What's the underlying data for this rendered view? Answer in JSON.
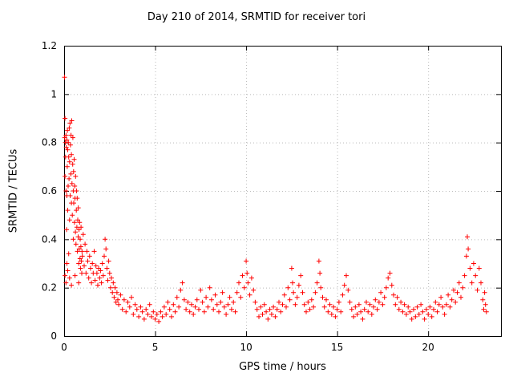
{
  "chart_data": {
    "type": "scatter",
    "title": "Day 210 of 2014, SRMTID for receiver tori",
    "xlabel": "GPS time / hours",
    "ylabel": "SRMTID / TECUs",
    "xlim": [
      0,
      24
    ],
    "ylim": [
      0,
      1.2
    ],
    "xticks": [
      0,
      5,
      10,
      15,
      20
    ],
    "xtick_labels": [
      "0",
      "5",
      "10",
      "15",
      "20"
    ],
    "yticks": [
      0,
      0.2,
      0.4,
      0.6,
      0.8,
      1,
      1.2
    ],
    "ytick_labels": [
      "0",
      "0.2",
      "0.4",
      "0.6",
      "0.8",
      "1",
      "1.2"
    ],
    "grid": true,
    "grid_color": "#b8b8b8",
    "legend": "none",
    "marker": "plus",
    "marker_color": "#ff0000",
    "points": [
      [
        0.02,
        1.07
      ],
      [
        0.03,
        0.82
      ],
      [
        0.05,
        0.9
      ],
      [
        0.05,
        0.66
      ],
      [
        0.07,
        0.8
      ],
      [
        0.08,
        0.74
      ],
      [
        0.1,
        0.83
      ],
      [
        0.1,
        0.6
      ],
      [
        0.12,
        0.78
      ],
      [
        0.13,
        0.44
      ],
      [
        0.15,
        0.81
      ],
      [
        0.15,
        0.58
      ],
      [
        0.17,
        0.7
      ],
      [
        0.18,
        0.85
      ],
      [
        0.2,
        0.77
      ],
      [
        0.2,
        0.52
      ],
      [
        0.22,
        0.62
      ],
      [
        0.23,
        0.8
      ],
      [
        0.25,
        0.74
      ],
      [
        0.25,
        0.34
      ],
      [
        0.27,
        0.65
      ],
      [
        0.28,
        0.86
      ],
      [
        0.3,
        0.72
      ],
      [
        0.3,
        0.48
      ],
      [
        0.32,
        0.88
      ],
      [
        0.33,
        0.58
      ],
      [
        0.35,
        0.79
      ],
      [
        0.37,
        0.67
      ],
      [
        0.38,
        0.83
      ],
      [
        0.4,
        0.55
      ],
      [
        0.4,
        0.75
      ],
      [
        0.42,
        0.89
      ],
      [
        0.43,
        0.63
      ],
      [
        0.45,
        0.5
      ],
      [
        0.47,
        0.71
      ],
      [
        0.48,
        0.82
      ],
      [
        0.5,
        0.6
      ],
      [
        0.5,
        0.4
      ],
      [
        0.52,
        0.68
      ],
      [
        0.53,
        0.55
      ],
      [
        0.55,
        0.73
      ],
      [
        0.57,
        0.47
      ],
      [
        0.58,
        0.62
      ],
      [
        0.6,
        0.57
      ],
      [
        0.62,
        0.43
      ],
      [
        0.63,
        0.66
      ],
      [
        0.65,
        0.38
      ],
      [
        0.67,
        0.52
      ],
      [
        0.68,
        0.6
      ],
      [
        0.7,
        0.45
      ],
      [
        0.72,
        0.57
      ],
      [
        0.73,
        0.35
      ],
      [
        0.75,
        0.48
      ],
      [
        0.77,
        0.41
      ],
      [
        0.78,
        0.53
      ],
      [
        0.8,
        0.3
      ],
      [
        0.82,
        0.44
      ],
      [
        0.83,
        0.36
      ],
      [
        0.85,
        0.47
      ],
      [
        0.87,
        0.32
      ],
      [
        0.88,
        0.4
      ],
      [
        0.9,
        0.28
      ],
      [
        0.92,
        0.37
      ],
      [
        0.93,
        0.45
      ],
      [
        0.95,
        0.31
      ],
      [
        0.97,
        0.26
      ],
      [
        0.98,
        0.35
      ],
      [
        0.05,
        0.25
      ],
      [
        0.1,
        0.22
      ],
      [
        0.15,
        0.3
      ],
      [
        0.2,
        0.27
      ],
      [
        0.3,
        0.24
      ],
      [
        0.4,
        0.21
      ],
      [
        0.6,
        0.25
      ],
      [
        0.8,
        0.22
      ],
      [
        1.0,
        0.33
      ],
      [
        1.05,
        0.42
      ],
      [
        1.1,
        0.29
      ],
      [
        1.15,
        0.38
      ],
      [
        1.2,
        0.26
      ],
      [
        1.25,
        0.35
      ],
      [
        1.3,
        0.31
      ],
      [
        1.35,
        0.24
      ],
      [
        1.4,
        0.33
      ],
      [
        1.45,
        0.28
      ],
      [
        1.5,
        0.22
      ],
      [
        1.55,
        0.3
      ],
      [
        1.6,
        0.26
      ],
      [
        1.65,
        0.35
      ],
      [
        1.7,
        0.23
      ],
      [
        1.75,
        0.29
      ],
      [
        1.8,
        0.26
      ],
      [
        1.85,
        0.21
      ],
      [
        1.9,
        0.28
      ],
      [
        1.95,
        0.24
      ],
      [
        2.0,
        0.27
      ],
      [
        2.05,
        0.22
      ],
      [
        2.1,
        0.3
      ],
      [
        2.15,
        0.25
      ],
      [
        2.2,
        0.33
      ],
      [
        2.25,
        0.4
      ],
      [
        2.3,
        0.36
      ],
      [
        2.35,
        0.28
      ],
      [
        2.4,
        0.23
      ],
      [
        2.45,
        0.31
      ],
      [
        2.5,
        0.26
      ],
      [
        2.55,
        0.2
      ],
      [
        2.6,
        0.24
      ],
      [
        2.65,
        0.18
      ],
      [
        2.7,
        0.22
      ],
      [
        2.75,
        0.16
      ],
      [
        2.8,
        0.2
      ],
      [
        2.85,
        0.14
      ],
      [
        2.9,
        0.18
      ],
      [
        2.95,
        0.15
      ],
      [
        3.0,
        0.13
      ],
      [
        3.1,
        0.17
      ],
      [
        3.2,
        0.11
      ],
      [
        3.3,
        0.15
      ],
      [
        3.4,
        0.1
      ],
      [
        3.5,
        0.14
      ],
      [
        3.6,
        0.12
      ],
      [
        3.7,
        0.16
      ],
      [
        3.8,
        0.09
      ],
      [
        3.9,
        0.13
      ],
      [
        4.0,
        0.11
      ],
      [
        4.1,
        0.08
      ],
      [
        4.2,
        0.12
      ],
      [
        4.3,
        0.1
      ],
      [
        4.4,
        0.07
      ],
      [
        4.5,
        0.11
      ],
      [
        4.6,
        0.09
      ],
      [
        4.7,
        0.13
      ],
      [
        4.8,
        0.08
      ],
      [
        4.9,
        0.1
      ],
      [
        5.0,
        0.07
      ],
      [
        5.1,
        0.09
      ],
      [
        5.2,
        0.06
      ],
      [
        5.3,
        0.1
      ],
      [
        5.4,
        0.08
      ],
      [
        5.5,
        0.12
      ],
      [
        5.6,
        0.09
      ],
      [
        5.7,
        0.14
      ],
      [
        5.8,
        0.11
      ],
      [
        5.9,
        0.08
      ],
      [
        6.0,
        0.13
      ],
      [
        6.1,
        0.1
      ],
      [
        6.2,
        0.16
      ],
      [
        6.3,
        0.12
      ],
      [
        6.4,
        0.19
      ],
      [
        6.5,
        0.22
      ],
      [
        6.6,
        0.15
      ],
      [
        6.7,
        0.11
      ],
      [
        6.8,
        0.14
      ],
      [
        6.9,
        0.1
      ],
      [
        7.0,
        0.13
      ],
      [
        7.1,
        0.09
      ],
      [
        7.2,
        0.12
      ],
      [
        7.3,
        0.15
      ],
      [
        7.4,
        0.11
      ],
      [
        7.5,
        0.19
      ],
      [
        7.6,
        0.14
      ],
      [
        7.7,
        0.1
      ],
      [
        7.8,
        0.16
      ],
      [
        7.9,
        0.12
      ],
      [
        8.0,
        0.2
      ],
      [
        8.1,
        0.15
      ],
      [
        8.2,
        0.11
      ],
      [
        8.3,
        0.17
      ],
      [
        8.4,
        0.13
      ],
      [
        8.5,
        0.1
      ],
      [
        8.6,
        0.14
      ],
      [
        8.7,
        0.18
      ],
      [
        8.8,
        0.12
      ],
      [
        8.9,
        0.09
      ],
      [
        9.0,
        0.13
      ],
      [
        9.1,
        0.16
      ],
      [
        9.2,
        0.11
      ],
      [
        9.3,
        0.14
      ],
      [
        9.4,
        0.1
      ],
      [
        9.5,
        0.18
      ],
      [
        9.6,
        0.22
      ],
      [
        9.7,
        0.16
      ],
      [
        9.8,
        0.25
      ],
      [
        9.9,
        0.2
      ],
      [
        10.0,
        0.31
      ],
      [
        10.05,
        0.26
      ],
      [
        10.1,
        0.22
      ],
      [
        10.2,
        0.17
      ],
      [
        10.3,
        0.24
      ],
      [
        10.4,
        0.19
      ],
      [
        10.5,
        0.14
      ],
      [
        10.6,
        0.11
      ],
      [
        10.7,
        0.08
      ],
      [
        10.8,
        0.12
      ],
      [
        10.9,
        0.09
      ],
      [
        11.0,
        0.13
      ],
      [
        11.1,
        0.1
      ],
      [
        11.2,
        0.07
      ],
      [
        11.3,
        0.11
      ],
      [
        11.4,
        0.09
      ],
      [
        11.5,
        0.12
      ],
      [
        11.6,
        0.08
      ],
      [
        11.7,
        0.11
      ],
      [
        11.8,
        0.14
      ],
      [
        11.9,
        0.1
      ],
      [
        12.0,
        0.13
      ],
      [
        12.1,
        0.17
      ],
      [
        12.2,
        0.12
      ],
      [
        12.3,
        0.2
      ],
      [
        12.4,
        0.15
      ],
      [
        12.5,
        0.28
      ],
      [
        12.55,
        0.22
      ],
      [
        12.6,
        0.18
      ],
      [
        12.7,
        0.13
      ],
      [
        12.8,
        0.16
      ],
      [
        12.9,
        0.21
      ],
      [
        13.0,
        0.25
      ],
      [
        13.1,
        0.18
      ],
      [
        13.2,
        0.13
      ],
      [
        13.3,
        0.1
      ],
      [
        13.4,
        0.14
      ],
      [
        13.5,
        0.11
      ],
      [
        13.6,
        0.15
      ],
      [
        13.7,
        0.12
      ],
      [
        13.8,
        0.18
      ],
      [
        13.9,
        0.22
      ],
      [
        14.0,
        0.31
      ],
      [
        14.05,
        0.26
      ],
      [
        14.1,
        0.2
      ],
      [
        14.2,
        0.16
      ],
      [
        14.3,
        0.12
      ],
      [
        14.4,
        0.15
      ],
      [
        14.5,
        0.1
      ],
      [
        14.6,
        0.13
      ],
      [
        14.7,
        0.09
      ],
      [
        14.8,
        0.12
      ],
      [
        14.9,
        0.08
      ],
      [
        15.0,
        0.11
      ],
      [
        15.1,
        0.14
      ],
      [
        15.2,
        0.1
      ],
      [
        15.3,
        0.17
      ],
      [
        15.4,
        0.21
      ],
      [
        15.5,
        0.25
      ],
      [
        15.6,
        0.19
      ],
      [
        15.7,
        0.14
      ],
      [
        15.8,
        0.11
      ],
      [
        15.9,
        0.08
      ],
      [
        16.0,
        0.12
      ],
      [
        16.1,
        0.09
      ],
      [
        16.2,
        0.13
      ],
      [
        16.3,
        0.1
      ],
      [
        16.4,
        0.07
      ],
      [
        16.5,
        0.11
      ],
      [
        16.6,
        0.14
      ],
      [
        16.7,
        0.1
      ],
      [
        16.8,
        0.13
      ],
      [
        16.9,
        0.09
      ],
      [
        17.0,
        0.12
      ],
      [
        17.1,
        0.15
      ],
      [
        17.2,
        0.11
      ],
      [
        17.3,
        0.14
      ],
      [
        17.4,
        0.18
      ],
      [
        17.5,
        0.13
      ],
      [
        17.6,
        0.16
      ],
      [
        17.7,
        0.2
      ],
      [
        17.8,
        0.24
      ],
      [
        17.9,
        0.26
      ],
      [
        18.0,
        0.21
      ],
      [
        18.1,
        0.17
      ],
      [
        18.2,
        0.13
      ],
      [
        18.3,
        0.16
      ],
      [
        18.4,
        0.11
      ],
      [
        18.5,
        0.14
      ],
      [
        18.6,
        0.1
      ],
      [
        18.7,
        0.13
      ],
      [
        18.8,
        0.09
      ],
      [
        18.9,
        0.12
      ],
      [
        19.0,
        0.1
      ],
      [
        19.1,
        0.07
      ],
      [
        19.2,
        0.11
      ],
      [
        19.3,
        0.08
      ],
      [
        19.4,
        0.12
      ],
      [
        19.5,
        0.09
      ],
      [
        19.6,
        0.13
      ],
      [
        19.7,
        0.1
      ],
      [
        19.8,
        0.07
      ],
      [
        19.9,
        0.11
      ],
      [
        20.0,
        0.09
      ],
      [
        20.1,
        0.12
      ],
      [
        20.2,
        0.08
      ],
      [
        20.3,
        0.11
      ],
      [
        20.4,
        0.14
      ],
      [
        20.5,
        0.1
      ],
      [
        20.6,
        0.13
      ],
      [
        20.7,
        0.16
      ],
      [
        20.8,
        0.12
      ],
      [
        20.9,
        0.09
      ],
      [
        21.0,
        0.13
      ],
      [
        21.1,
        0.17
      ],
      [
        21.2,
        0.12
      ],
      [
        21.3,
        0.15
      ],
      [
        21.4,
        0.19
      ],
      [
        21.5,
        0.14
      ],
      [
        21.6,
        0.18
      ],
      [
        21.7,
        0.22
      ],
      [
        21.8,
        0.16
      ],
      [
        21.9,
        0.2
      ],
      [
        22.0,
        0.25
      ],
      [
        22.1,
        0.33
      ],
      [
        22.15,
        0.41
      ],
      [
        22.2,
        0.36
      ],
      [
        22.3,
        0.28
      ],
      [
        22.4,
        0.22
      ],
      [
        22.5,
        0.3
      ],
      [
        22.6,
        0.25
      ],
      [
        22.7,
        0.19
      ],
      [
        22.8,
        0.28
      ],
      [
        22.9,
        0.22
      ],
      [
        23.0,
        0.15
      ],
      [
        23.05,
        0.11
      ],
      [
        23.1,
        0.18
      ],
      [
        23.15,
        0.13
      ],
      [
        23.2,
        0.1
      ]
    ]
  }
}
